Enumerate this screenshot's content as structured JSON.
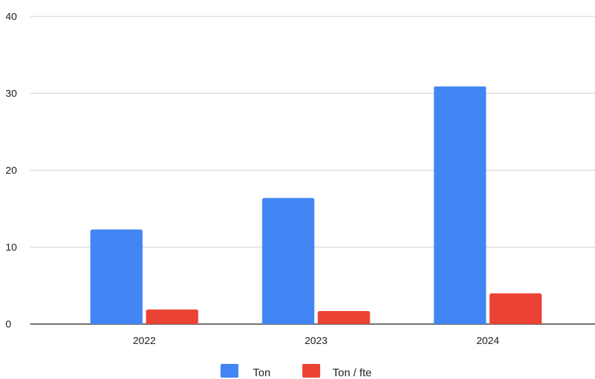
{
  "chart_data": {
    "type": "bar",
    "categories": [
      "2022",
      "2023",
      "2024"
    ],
    "series": [
      {
        "name": "Ton",
        "values": [
          12.3,
          16.4,
          30.9
        ],
        "color": "#4285f4"
      },
      {
        "name": "Ton / fte",
        "values": [
          1.9,
          1.7,
          4.0
        ],
        "color": "#ea4335"
      }
    ],
    "title": "",
    "xlabel": "",
    "ylabel": "",
    "ylim": [
      0,
      40
    ],
    "yticks": [
      0,
      10,
      20,
      30,
      40
    ],
    "grid": true,
    "legend_position": "bottom"
  }
}
